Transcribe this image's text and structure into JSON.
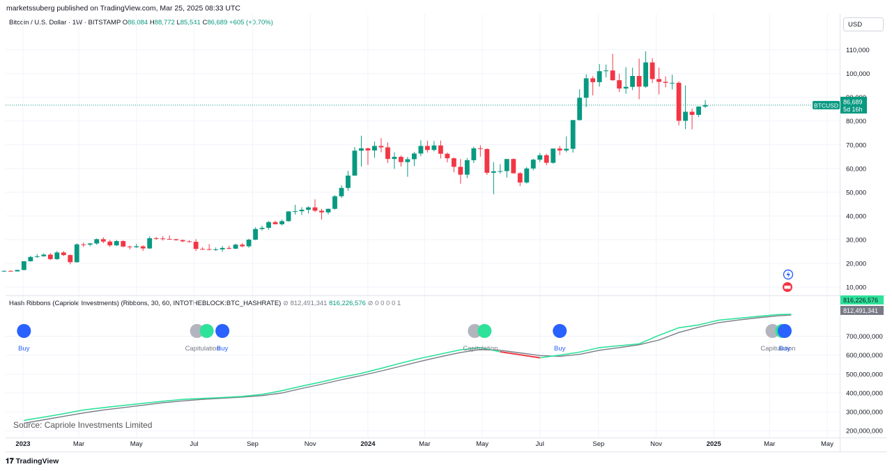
{
  "header": {
    "published": "marketssuberg published on TradingView.com, Mar 25, 2025 08:33 UTC"
  },
  "legend": {
    "symbol": "Bitcoin / U.S. Dollar · 1W · BITSTAMP",
    "o_label": "O",
    "o": "86,084",
    "h_label": "H",
    "h": "88,772",
    "l_label": "L",
    "l": "85,541",
    "c_label": "C",
    "c": "86,689",
    "change": "+605 (+0.70%)"
  },
  "currency": "USD",
  "price_badge": {
    "symbol": "BTCUSD",
    "price": "86,689",
    "countdown": "5d 16h"
  },
  "indicator": {
    "title": "Hash Ribbons (Capriole Investments) (Ribbons, 30, 60, INTOTHEBLOCK:BTC_HASHRATE)",
    "v1": "812,491,341",
    "v2": "816,226,576",
    "tail": "0 0 0 0 1",
    "badge_fast": "816,226,576",
    "badge_slow": "812,491,341"
  },
  "signals": [
    {
      "type": "buy",
      "label": "Buy",
      "date": "2023-01-02"
    },
    {
      "type": "capitulation",
      "label": "Capitulation",
      "date": "2023-07-10"
    },
    {
      "type": "buy",
      "label": "Buy",
      "date": "2023-07-31"
    },
    {
      "type": "capitulation",
      "label": "Capitulation",
      "date": "2024-04-29"
    },
    {
      "type": "buy",
      "label": "Buy",
      "date": "2024-07-22"
    },
    {
      "type": "capitulation",
      "label": "Capitulation",
      "date": "2025-03-10"
    },
    {
      "type": "buy",
      "label": "Buy",
      "date": "2025-03-17"
    }
  ],
  "source": "Source: Capriole Investments Limited",
  "footer": {
    "logo_text": "TradingView"
  },
  "colors": {
    "up": "#089981",
    "down": "#f23645",
    "fast": "#2ee29a",
    "slow": "#787b86",
    "buy": "#2962ff",
    "cap_grey": "#b2b5be"
  },
  "chart_data": [
    {
      "type": "candlestick",
      "title": "Bitcoin / U.S. Dollar · 1W · BITSTAMP",
      "price_ticks": [
        "10,000",
        "20,000",
        "30,000",
        "40,000",
        "50,000",
        "60,000",
        "70,000",
        "80,000",
        "90,000",
        "100,000",
        "110,000"
      ],
      "price_tick_values": [
        10000,
        20000,
        30000,
        40000,
        50000,
        60000,
        70000,
        80000,
        90000,
        100000,
        110000
      ],
      "ylim": [
        6500,
        117500
      ],
      "time_ticks": [
        {
          "label": "2023",
          "date": "2023-01-01",
          "bold": true
        },
        {
          "label": "Mar",
          "date": "2023-03-01"
        },
        {
          "label": "May",
          "date": "2023-05-01"
        },
        {
          "label": "Jul",
          "date": "2023-07-01"
        },
        {
          "label": "Sep",
          "date": "2023-09-01"
        },
        {
          "label": "Nov",
          "date": "2023-11-01"
        },
        {
          "label": "2024",
          "date": "2024-01-01",
          "bold": true
        },
        {
          "label": "Mar",
          "date": "2024-03-01"
        },
        {
          "label": "May",
          "date": "2024-05-01"
        },
        {
          "label": "Jul",
          "date": "2024-07-01"
        },
        {
          "label": "Sep",
          "date": "2024-09-01"
        },
        {
          "label": "Nov",
          "date": "2024-11-01"
        },
        {
          "label": "2025",
          "date": "2025-01-01",
          "bold": true
        },
        {
          "label": "Mar",
          "date": "2025-03-01"
        },
        {
          "label": "May",
          "date": "2025-05-01"
        }
      ],
      "first_week": "2022-12-05",
      "candles_ohlc": [
        [
          16900,
          17200,
          16700,
          16800
        ],
        [
          16800,
          17000,
          16500,
          16840
        ],
        [
          16840,
          17100,
          16600,
          16620
        ],
        [
          16620,
          17400,
          16600,
          17200
        ],
        [
          17200,
          21000,
          17200,
          20900
        ],
        [
          20900,
          23200,
          20800,
          22700
        ],
        [
          22700,
          23900,
          22300,
          23000
        ],
        [
          23000,
          24200,
          22800,
          23700
        ],
        [
          23700,
          24300,
          21400,
          21800
        ],
        [
          21800,
          25200,
          21500,
          24600
        ],
        [
          24600,
          25200,
          23100,
          23500
        ],
        [
          23500,
          23800,
          19600,
          20500
        ],
        [
          20500,
          28500,
          20300,
          28000
        ],
        [
          28000,
          28800,
          26900,
          27900
        ],
        [
          27900,
          28600,
          27200,
          28400
        ],
        [
          28400,
          30500,
          27800,
          30200
        ],
        [
          30200,
          31000,
          28500,
          29200
        ],
        [
          29200,
          29900,
          26900,
          27600
        ],
        [
          27600,
          29900,
          27300,
          29400
        ],
        [
          29400,
          29800,
          26800,
          27100
        ],
        [
          27100,
          27500,
          25900,
          26800
        ],
        [
          26800,
          28200,
          26500,
          27200
        ],
        [
          27200,
          27600,
          25300,
          26300
        ],
        [
          26300,
          31400,
          26100,
          30600
        ],
        [
          30600,
          31200,
          29900,
          30500
        ],
        [
          30500,
          31500,
          29600,
          30300
        ],
        [
          30300,
          31800,
          30100,
          30200
        ],
        [
          30200,
          30400,
          29600,
          29800
        ],
        [
          29800,
          30100,
          28900,
          29300
        ],
        [
          29300,
          29700,
          28800,
          29100
        ],
        [
          29100,
          30200,
          25200,
          26100
        ],
        [
          26100,
          26800,
          25700,
          26000
        ],
        [
          26000,
          28100,
          25500,
          25800
        ],
        [
          25800,
          26700,
          25300,
          25900
        ],
        [
          25900,
          27300,
          24900,
          26500
        ],
        [
          26500,
          27400,
          25900,
          26200
        ],
        [
          26200,
          28300,
          26000,
          27900
        ],
        [
          27900,
          28500,
          26800,
          27200
        ],
        [
          27200,
          30400,
          26600,
          30000
        ],
        [
          30000,
          35200,
          29800,
          34500
        ],
        [
          34500,
          35900,
          33900,
          35000
        ],
        [
          35000,
          37900,
          34200,
          37400
        ],
        [
          37400,
          38000,
          36700,
          36500
        ],
        [
          36500,
          38500,
          36000,
          37800
        ],
        [
          37800,
          42000,
          37600,
          41900
        ],
        [
          41900,
          44700,
          40600,
          42000
        ],
        [
          42000,
          43700,
          40400,
          42600
        ],
        [
          42600,
          44100,
          41000,
          43600
        ],
        [
          43600,
          47000,
          41600,
          42200
        ],
        [
          42200,
          43000,
          38500,
          41500
        ],
        [
          41500,
          43100,
          40600,
          43000
        ],
        [
          43000,
          48700,
          42600,
          48300
        ],
        [
          48300,
          52900,
          47600,
          51800
        ],
        [
          51800,
          59000,
          50600,
          57000
        ],
        [
          57000,
          69000,
          56900,
          67500
        ],
        [
          67500,
          73800,
          60800,
          68500
        ],
        [
          68500,
          68800,
          61500,
          67600
        ],
        [
          67600,
          71300,
          64500,
          69500
        ],
        [
          69500,
          72800,
          66800,
          68900
        ],
        [
          68900,
          71000,
          62300,
          64000
        ],
        [
          64000,
          66800,
          59800,
          64900
        ],
        [
          64900,
          65500,
          60800,
          62700
        ],
        [
          62700,
          64900,
          56500,
          63900
        ],
        [
          63900,
          67000,
          61000,
          66300
        ],
        [
          66300,
          71900,
          65200,
          69500
        ],
        [
          69500,
          71700,
          66700,
          67800
        ],
        [
          67800,
          71600,
          67200,
          69700
        ],
        [
          69700,
          71800,
          64200,
          66200
        ],
        [
          66200,
          66700,
          62600,
          64300
        ],
        [
          64300,
          64600,
          58400,
          60700
        ],
        [
          60700,
          64000,
          53600,
          57400
        ],
        [
          57400,
          64400,
          55900,
          63500
        ],
        [
          63500,
          69200,
          62300,
          68500
        ],
        [
          68500,
          69800,
          65000,
          68200
        ],
        [
          68200,
          68500,
          57300,
          58200
        ],
        [
          58200,
          62700,
          49100,
          58800
        ],
        [
          58800,
          61800,
          57800,
          58900
        ],
        [
          58900,
          61900,
          56200,
          64000
        ],
        [
          64000,
          64200,
          57800,
          58000
        ],
        [
          58000,
          58500,
          52600,
          54100
        ],
        [
          54100,
          60600,
          53600,
          60000
        ],
        [
          60000,
          64100,
          59200,
          63700
        ],
        [
          63700,
          66500,
          62700,
          65600
        ],
        [
          65600,
          66200,
          61400,
          62400
        ],
        [
          62400,
          68400,
          62000,
          68400
        ],
        [
          68400,
          69500,
          65700,
          67600
        ],
        [
          67600,
          73500,
          66800,
          68300
        ],
        [
          68300,
          76900,
          66700,
          80400
        ],
        [
          80400,
          93400,
          80200,
          89800
        ],
        [
          89800,
          99700,
          85900,
          98000
        ],
        [
          98000,
          98900,
          90800,
          96400
        ],
        [
          96400,
          104000,
          94500,
          101000
        ],
        [
          101000,
          103800,
          98400,
          101300
        ],
        [
          101300,
          108300,
          96900,
          97200
        ],
        [
          97200,
          99900,
          92200,
          93700
        ],
        [
          93700,
          102700,
          91500,
          94400
        ],
        [
          94400,
          102500,
          93000,
          99000
        ],
        [
          99000,
          106300,
          89200,
          94500
        ],
        [
          94500,
          109400,
          94000,
          104700
        ],
        [
          104700,
          106500,
          96000,
          97700
        ],
        [
          97700,
          102500,
          91200,
          96500
        ],
        [
          96500,
          98800,
          94200,
          96100
        ],
        [
          96100,
          99500,
          93300,
          96100
        ],
        [
          96100,
          96800,
          78200,
          80100
        ],
        [
          80100,
          95000,
          76600,
          83900
        ],
        [
          83900,
          85200,
          76500,
          82600
        ],
        [
          82600,
          86200,
          81700,
          86100
        ],
        [
          86100,
          88800,
          85500,
          86700
        ]
      ]
    },
    {
      "type": "line",
      "title": "Hash Ribbons (Capriole Investments) (Ribbons, 30, 60, INTOTHEBLOCK:BTC_HASHRATE)",
      "value_ticks": [
        "200,000,000",
        "300,000,000",
        "400,000,000",
        "500,000,000",
        "600,000,000",
        "700,000,000"
      ],
      "value_tick_values": [
        200000000,
        300000000,
        400000000,
        500000000,
        600000000,
        700000000
      ],
      "ylim": [
        175000000,
        835000000
      ],
      "series": [
        {
          "name": "",
          "color_key": "fast",
          "x": [
            "2023-01-02",
            "2023-01-23",
            "2023-02-13",
            "2023-03-06",
            "2023-03-27",
            "2023-04-17",
            "2023-05-08",
            "2023-05-29",
            "2023-06-19",
            "2023-07-10",
            "2023-07-31",
            "2023-08-21",
            "2023-09-11",
            "2023-10-02",
            "2023-10-23",
            "2023-11-13",
            "2023-12-04",
            "2023-12-25",
            "2024-01-15",
            "2024-02-05",
            "2024-02-26",
            "2024-03-18",
            "2024-04-08",
            "2024-04-29",
            "2024-05-20",
            "2024-06-10",
            "2024-07-01",
            "2024-07-22",
            "2024-08-12",
            "2024-09-02",
            "2024-09-23",
            "2024-10-14",
            "2024-11-04",
            "2024-11-25",
            "2024-12-16",
            "2025-01-06",
            "2025-01-27",
            "2025-02-17",
            "2025-03-10",
            "2025-03-24"
          ],
          "values": [
            255000000,
            272000000,
            290000000,
            310000000,
            322000000,
            334000000,
            345000000,
            356000000,
            366000000,
            371000000,
            376000000,
            382000000,
            392000000,
            412000000,
            436000000,
            458000000,
            483000000,
            504000000,
            530000000,
            558000000,
            584000000,
            606000000,
            628000000,
            640000000,
            618000000,
            602000000,
            586000000,
            600000000,
            616000000,
            640000000,
            650000000,
            660000000,
            705000000,
            745000000,
            760000000,
            785000000,
            795000000,
            805000000,
            815000000,
            816226576
          ]
        },
        {
          "name": "",
          "color_key": "slow",
          "x": [
            "2023-01-02",
            "2023-01-23",
            "2023-02-13",
            "2023-03-06",
            "2023-03-27",
            "2023-04-17",
            "2023-05-08",
            "2023-05-29",
            "2023-06-19",
            "2023-07-10",
            "2023-07-31",
            "2023-08-21",
            "2023-09-11",
            "2023-10-02",
            "2023-10-23",
            "2023-11-13",
            "2023-12-04",
            "2023-12-25",
            "2024-01-15",
            "2024-02-05",
            "2024-02-26",
            "2024-03-18",
            "2024-04-08",
            "2024-04-29",
            "2024-05-20",
            "2024-06-10",
            "2024-07-01",
            "2024-07-22",
            "2024-08-12",
            "2024-09-02",
            "2024-09-23",
            "2024-10-14",
            "2024-11-04",
            "2024-11-25",
            "2024-12-16",
            "2025-01-06",
            "2025-01-27",
            "2025-02-17",
            "2025-03-10",
            "2025-03-24"
          ],
          "values": [
            240000000,
            258000000,
            276000000,
            294000000,
            310000000,
            322000000,
            335000000,
            348000000,
            358000000,
            366000000,
            372000000,
            378000000,
            386000000,
            400000000,
            424000000,
            446000000,
            470000000,
            492000000,
            516000000,
            542000000,
            568000000,
            592000000,
            614000000,
            630000000,
            626000000,
            612000000,
            598000000,
            594000000,
            604000000,
            626000000,
            640000000,
            655000000,
            680000000,
            720000000,
            748000000,
            772000000,
            786000000,
            798000000,
            808000000,
            812491341
          ]
        }
      ]
    }
  ]
}
